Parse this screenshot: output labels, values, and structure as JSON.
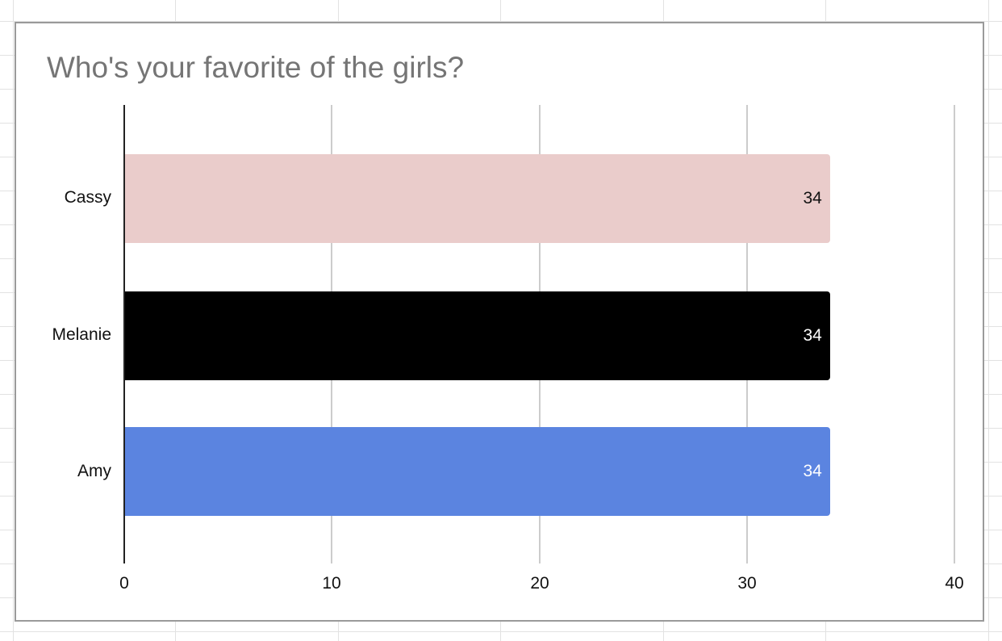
{
  "chart_data": {
    "type": "bar",
    "orientation": "horizontal",
    "title": "Who's your favorite of the girls?",
    "categories": [
      "Cassy",
      "Melanie",
      "Amy"
    ],
    "values": [
      34,
      34,
      34
    ],
    "colors": [
      "#eacccb",
      "#000000",
      "#5b84e0"
    ],
    "value_label_colors": [
      "#111111",
      "#ffffff",
      "#ffffff"
    ],
    "xlabel": "",
    "ylabel": "",
    "xlim": [
      0,
      40
    ],
    "x_ticks": [
      "0",
      "10",
      "20",
      "30",
      "40"
    ],
    "grid": true,
    "legend": "none",
    "data_labels": true
  }
}
